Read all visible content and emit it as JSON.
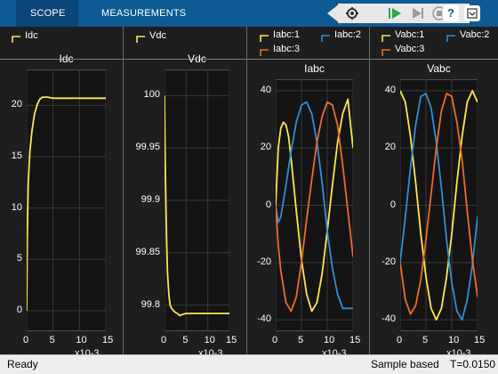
{
  "toolbar": {
    "tabs": [
      {
        "label": "SCOPE",
        "active": true
      },
      {
        "label": "MEASUREMENTS",
        "active": false
      }
    ],
    "tools": [
      "settings-icon",
      "run-icon",
      "step-forward-icon",
      "stop-icon"
    ],
    "help_label": "?",
    "colors": {
      "bar": "#0d5a95",
      "active_tab": "#0a4677"
    }
  },
  "colors": {
    "yellow": "#ffe74b",
    "blue": "#2e8fd6",
    "orange": "#ee6a2b",
    "axes_bg": "#141414",
    "grid": "#3a3a3a"
  },
  "status": {
    "ready": "Ready",
    "mode": "Sample based",
    "time": "T=0.0150"
  },
  "panels": [
    {
      "legend": [
        {
          "label": "Idc",
          "color": "yellow"
        }
      ],
      "title": "Idc",
      "exp": "x10-3",
      "yticks": [
        "0",
        "5",
        "10",
        "15",
        "20"
      ],
      "xticks": [
        "0",
        "5",
        "10",
        "15"
      ]
    },
    {
      "legend": [
        {
          "label": "Vdc",
          "color": "yellow"
        }
      ],
      "title": "Vdc",
      "exp": "x10-3",
      "yticks": [
        "99.8",
        "99.85",
        "99.9",
        "99.95",
        "100"
      ],
      "xticks": [
        "0",
        "5",
        "10",
        "15"
      ]
    },
    {
      "legend": [
        {
          "label": "Iabc:1",
          "color": "yellow"
        },
        {
          "label": "Iabc:2",
          "color": "blue"
        },
        {
          "label": "Iabc:3",
          "color": "orange"
        }
      ],
      "title": "Iabc",
      "exp": "x10-3",
      "yticks": [
        "-40",
        "-20",
        "0",
        "20",
        "40"
      ],
      "xticks": [
        "0",
        "5",
        "10",
        "15"
      ]
    },
    {
      "legend": [
        {
          "label": "Vabc:1",
          "color": "yellow"
        },
        {
          "label": "Vabc:2",
          "color": "blue"
        },
        {
          "label": "Vabc:3",
          "color": "orange"
        }
      ],
      "title": "Vabc",
      "exp": "x10-3",
      "yticks": [
        "-40",
        "-20",
        "0",
        "20",
        "40"
      ],
      "xticks": [
        "0",
        "5",
        "10",
        "15"
      ]
    }
  ],
  "chart_data": [
    {
      "type": "line",
      "title": "Idc",
      "xlabel": "x10-3",
      "ylabel": "",
      "xlim": [
        0,
        15
      ],
      "ylim": [
        -2,
        23.5
      ],
      "grid": true,
      "series": [
        {
          "name": "Idc",
          "color": "yellow",
          "x": [
            0,
            0.1,
            0.3,
            0.6,
            1.0,
            1.5,
            2.0,
            2.5,
            3.0,
            3.5,
            4.0,
            4.5,
            5.0,
            6.0,
            8.0,
            10,
            12,
            15
          ],
          "y": [
            0,
            7,
            12.5,
            15.5,
            17.5,
            19.2,
            20.1,
            20.6,
            20.8,
            20.8,
            20.8,
            20.75,
            20.7,
            20.7,
            20.7,
            20.7,
            20.7,
            20.7
          ]
        }
      ]
    },
    {
      "type": "line",
      "title": "Vdc",
      "xlabel": "x10-3",
      "ylabel": "",
      "xlim": [
        0,
        15
      ],
      "ylim": [
        99.775,
        100.025
      ],
      "grid": true,
      "series": [
        {
          "name": "Vdc",
          "color": "yellow",
          "x": [
            0,
            0.05,
            0.15,
            0.3,
            0.5,
            0.7,
            1.0,
            1.3,
            1.6,
            2.0,
            2.5,
            3.0,
            3.5,
            4.0,
            5.0,
            7.0,
            10,
            15
          ],
          "y": [
            100,
            99.98,
            99.94,
            99.9,
            99.86,
            99.83,
            99.81,
            99.8,
            99.797,
            99.795,
            99.793,
            99.792,
            99.79,
            99.791,
            99.792,
            99.792,
            99.792,
            99.792
          ]
        }
      ]
    },
    {
      "type": "line",
      "title": "Iabc",
      "xlabel": "x10-3",
      "ylabel": "",
      "xlim": [
        0,
        15
      ],
      "ylim": [
        -44,
        44
      ],
      "grid": true,
      "series": [
        {
          "name": "Iabc:1",
          "color": "yellow",
          "x": [
            0,
            0.5,
            1,
            1.5,
            2,
            2.5,
            3,
            4,
            5,
            6,
            7,
            8,
            9,
            10,
            11,
            12,
            13,
            14,
            15
          ],
          "y": [
            0,
            20,
            27,
            29,
            28,
            24,
            16,
            -2,
            -19,
            -31,
            -37,
            -34,
            -24,
            -9,
            7,
            22,
            32,
            37,
            20
          ]
        },
        {
          "name": "Iabc:2",
          "color": "blue",
          "x": [
            0,
            0.5,
            1,
            2,
            3,
            4,
            5,
            6,
            7,
            8,
            9,
            10,
            11,
            12,
            13,
            14,
            15
          ],
          "y": [
            0,
            -6,
            -4,
            7,
            19,
            29,
            35,
            36,
            32,
            22,
            8,
            -9,
            -22,
            -31,
            -36,
            -36,
            -36
          ]
        },
        {
          "name": "Iabc:3",
          "color": "orange",
          "x": [
            0,
            0.5,
            1,
            2,
            3,
            4,
            5,
            6,
            7,
            8,
            9,
            10,
            11,
            12,
            13,
            14,
            15
          ],
          "y": [
            0,
            -14,
            -23,
            -34,
            -37,
            -32,
            -20,
            -5,
            9,
            22,
            31,
            36,
            35,
            28,
            14,
            -2,
            -18
          ]
        }
      ]
    },
    {
      "type": "line",
      "title": "Vabc",
      "xlabel": "x10-3",
      "ylabel": "",
      "xlim": [
        0,
        15
      ],
      "ylim": [
        -44,
        44
      ],
      "grid": true,
      "series": [
        {
          "name": "Vabc:1",
          "color": "yellow",
          "x": [
            0,
            1,
            2,
            3,
            4,
            5,
            6,
            7,
            8,
            9,
            10,
            11,
            12,
            13,
            14,
            15
          ],
          "y": [
            40,
            36,
            24,
            8,
            -10,
            -25,
            -36,
            -40,
            -36,
            -25,
            -10,
            8,
            24,
            36,
            40,
            36
          ]
        },
        {
          "name": "Vabc:2",
          "color": "blue",
          "x": [
            0,
            1,
            2,
            3,
            4,
            5,
            6,
            7,
            8,
            9,
            10,
            11,
            12,
            13,
            14,
            15
          ],
          "y": [
            -20,
            -4,
            13,
            28,
            38,
            39,
            34,
            22,
            6,
            -12,
            -27,
            -37,
            -40,
            -33,
            -21,
            -4
          ]
        },
        {
          "name": "Vabc:3",
          "color": "orange",
          "x": [
            0,
            1,
            2,
            3,
            4,
            5,
            6,
            7,
            8,
            9,
            10,
            11,
            12,
            13,
            14,
            15
          ],
          "y": [
            -20,
            -33,
            -38,
            -35,
            -26,
            -12,
            4,
            20,
            33,
            39,
            38,
            29,
            16,
            -2,
            -19,
            -32
          ]
        }
      ]
    }
  ]
}
